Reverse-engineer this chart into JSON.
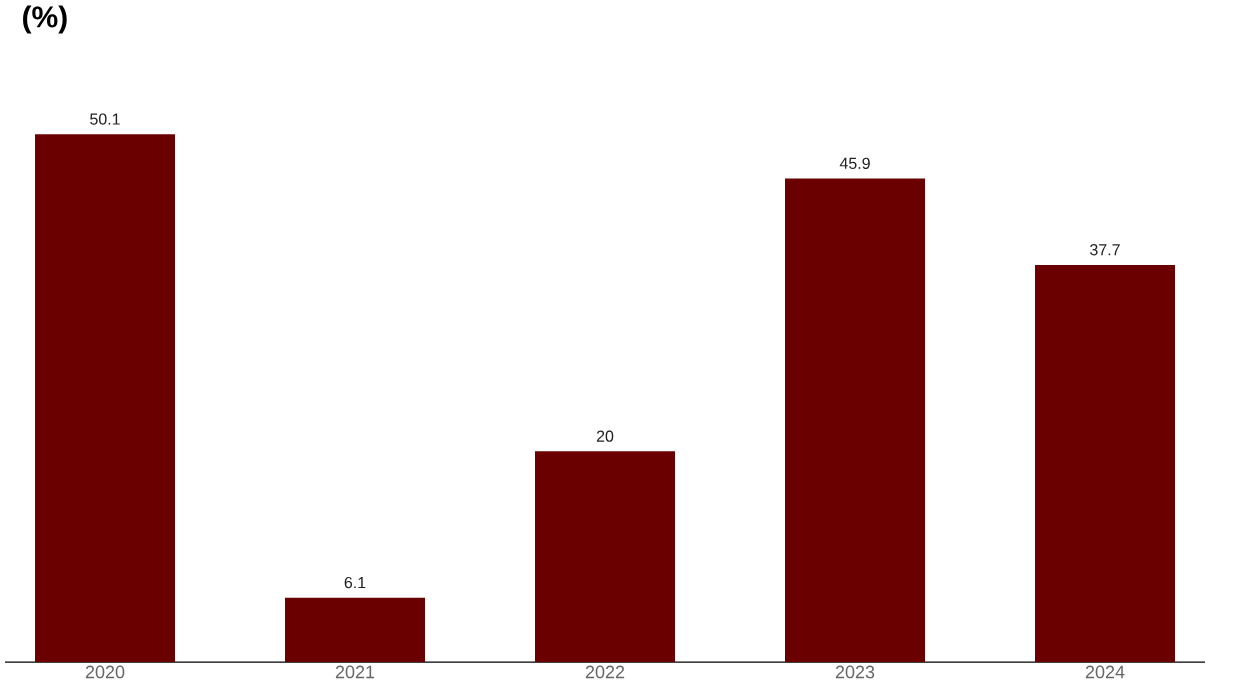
{
  "chart_data": {
    "type": "bar",
    "title": "(%)",
    "categories": [
      "2020",
      "2021",
      "2022",
      "2023",
      "2024"
    ],
    "values": [
      50.1,
      6.1,
      20,
      45.9,
      37.7
    ],
    "color": "#6b0000",
    "data_labels": true
  }
}
